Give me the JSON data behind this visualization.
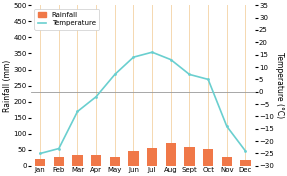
{
  "months": [
    "Jan",
    "Feb",
    "Mar",
    "Apr",
    "May",
    "Jun",
    "Jul",
    "Aug",
    "Sept",
    "Oct",
    "Nov",
    "Dec"
  ],
  "rainfall": [
    22,
    28,
    35,
    33,
    28,
    45,
    55,
    70,
    60,
    52,
    28,
    18
  ],
  "temperature": [
    -25,
    -23,
    -8,
    -2,
    7,
    14,
    16,
    13,
    7,
    5,
    -14,
    -24
  ],
  "bar_color": "#f07848",
  "line_color": "#6acfcf",
  "bg_color": "#ffffff",
  "grid_color": "#f5d8b0",
  "zero_line_color": "#999999",
  "ylabel_left": "Rainfall (mm)",
  "ylabel_right": "Temperature (°C)",
  "ylim_left": [
    0,
    500
  ],
  "ylim_right": [
    -30,
    35
  ],
  "yticks_left": [
    0,
    50,
    100,
    150,
    200,
    250,
    300,
    350,
    400,
    450,
    500
  ],
  "yticks_right": [
    -30,
    -25,
    -20,
    -15,
    -10,
    -5,
    0,
    5,
    10,
    15,
    20,
    25,
    30,
    35
  ],
  "legend_labels": [
    "Rainfall",
    "Temperature"
  ],
  "label_fontsize": 5.5,
  "tick_fontsize": 5.0
}
